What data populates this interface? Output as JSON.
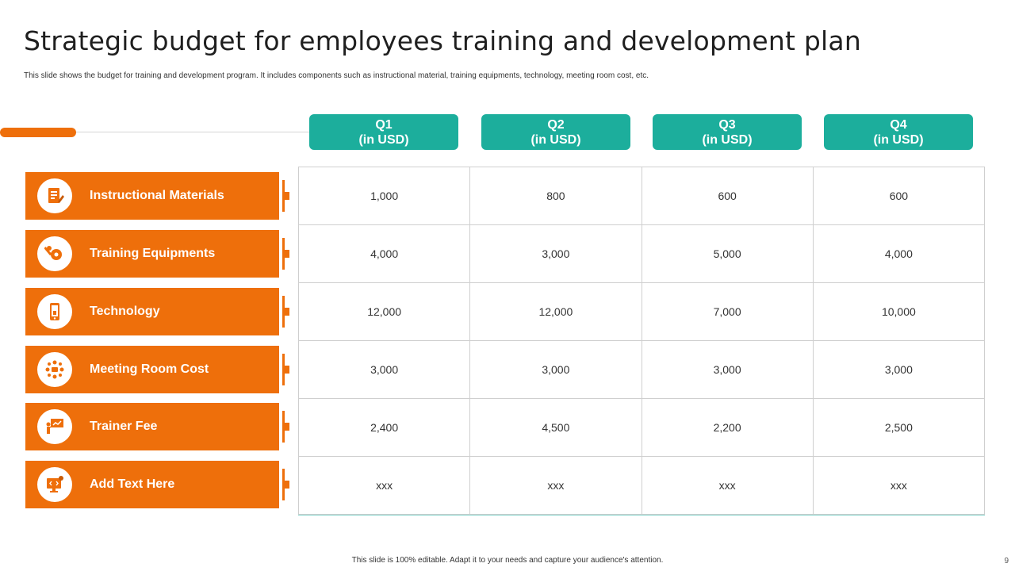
{
  "title": "Strategic budget for employees training and development plan",
  "subtitle": "This slide shows the budget for training and development program. It includes  components such as instructional material, training equipments, technology, meeting room cost, etc.",
  "quarters": [
    {
      "line1": "Q1",
      "line2": "(in USD)"
    },
    {
      "line1": "Q2",
      "line2": "(in USD)"
    },
    {
      "line1": "Q3",
      "line2": "(in USD)"
    },
    {
      "line1": "Q4",
      "line2": "(in USD)"
    }
  ],
  "rows": [
    {
      "label": "Instructional Materials",
      "icon": "document-pencil-icon",
      "values": [
        "1,000",
        "800",
        "600",
        "600"
      ]
    },
    {
      "label": "Training Equipments",
      "icon": "tools-gear-icon",
      "values": [
        "4,000",
        "3,000",
        "5,000",
        "4,000"
      ]
    },
    {
      "label": "Technology",
      "icon": "mobile-phone-icon",
      "values": [
        "12,000",
        "12,000",
        "7,000",
        "10,000"
      ]
    },
    {
      "label": "Meeting Room Cost",
      "icon": "meeting-people-icon",
      "values": [
        "3,000",
        "3,000",
        "3,000",
        "3,000"
      ]
    },
    {
      "label": "Trainer Fee",
      "icon": "presenter-board-icon",
      "values": [
        "2,400",
        "4,500",
        "2,200",
        "2,500"
      ]
    },
    {
      "label": "Add Text Here",
      "icon": "code-monitor-icon",
      "values": [
        "xxx",
        "xxx",
        "xxx",
        "xxx"
      ]
    }
  ],
  "footer": "This slide is 100% editable.  Adapt it to your needs and capture your audience's attention.",
  "page_number": "9",
  "colors": {
    "accent": "#ee6f0b",
    "teal": "#1cae9c"
  }
}
